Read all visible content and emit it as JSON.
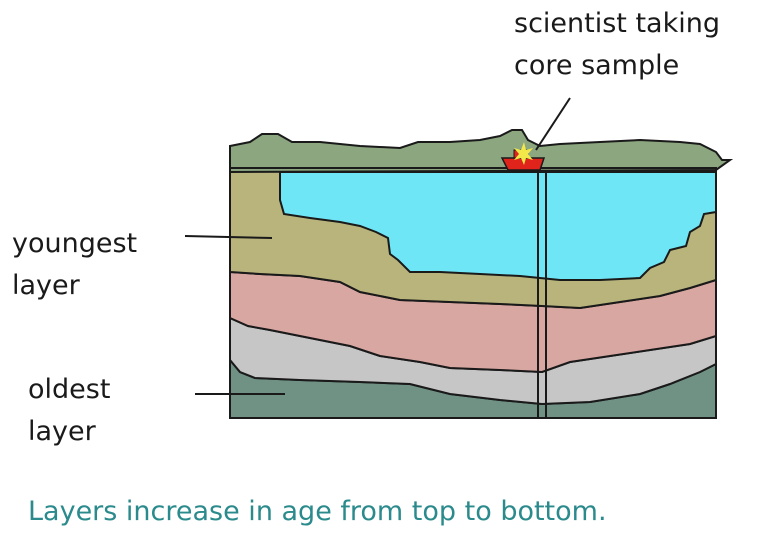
{
  "labels": {
    "scientist_line1": "scientist taking",
    "scientist_line2": "core sample",
    "youngest_line1": "youngest",
    "youngest_line2": "layer",
    "oldest_line1": "oldest",
    "oldest_line2": "layer"
  },
  "caption": "Layers increase in age from top to bottom.",
  "colors": {
    "surface": "#8ca67f",
    "water": "#6fe6f6",
    "layer_youngest": "#b8b47c",
    "layer_second": "#d8a7a2",
    "layer_third": "#c6c6c6",
    "layer_oldest": "#6f9285",
    "outline": "#1a1a1a",
    "boat": "#e0241b",
    "caption_text": "#2a8a8c"
  }
}
